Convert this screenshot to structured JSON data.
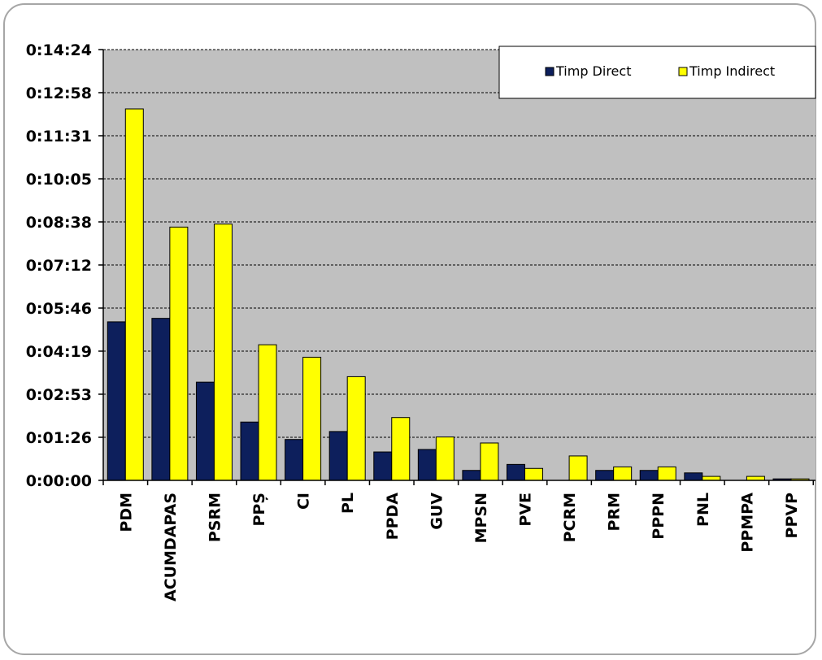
{
  "chart_data": {
    "type": "bar",
    "categories": [
      "PDM",
      "ACUMDAPAS",
      "PSRM",
      "PPȘ",
      "CI",
      "PL",
      "PPDA",
      "GUV",
      "MPSN",
      "PVE",
      "PCRM",
      "PRM",
      "PPPN",
      "PNL",
      "PPMPA",
      "PPVP"
    ],
    "y_ticks": [
      "0:00:00",
      "0:01:26",
      "0:02:53",
      "0:04:19",
      "0:05:46",
      "0:07:12",
      "0:08:38",
      "0:10:05",
      "0:11:31",
      "0:12:58",
      "0:14:24"
    ],
    "ylim_seconds": [
      0,
      864
    ],
    "series": [
      {
        "name": "Timp Direct",
        "color": "#0d1f5c",
        "values": [
          318,
          325,
          197,
          117,
          82,
          98,
          57,
          62,
          20,
          32,
          0,
          20,
          20,
          15,
          0,
          3
        ]
      },
      {
        "name": "Timp Indirect",
        "color": "#ffff00",
        "values": [
          745,
          508,
          514,
          272,
          247,
          208,
          126,
          87,
          75,
          24,
          49,
          27,
          27,
          8,
          8,
          3
        ]
      }
    ],
    "grid": true,
    "legend_position": "top-right",
    "plot_background": "#c0c0c0",
    "xlabel": "",
    "ylabel": ""
  }
}
